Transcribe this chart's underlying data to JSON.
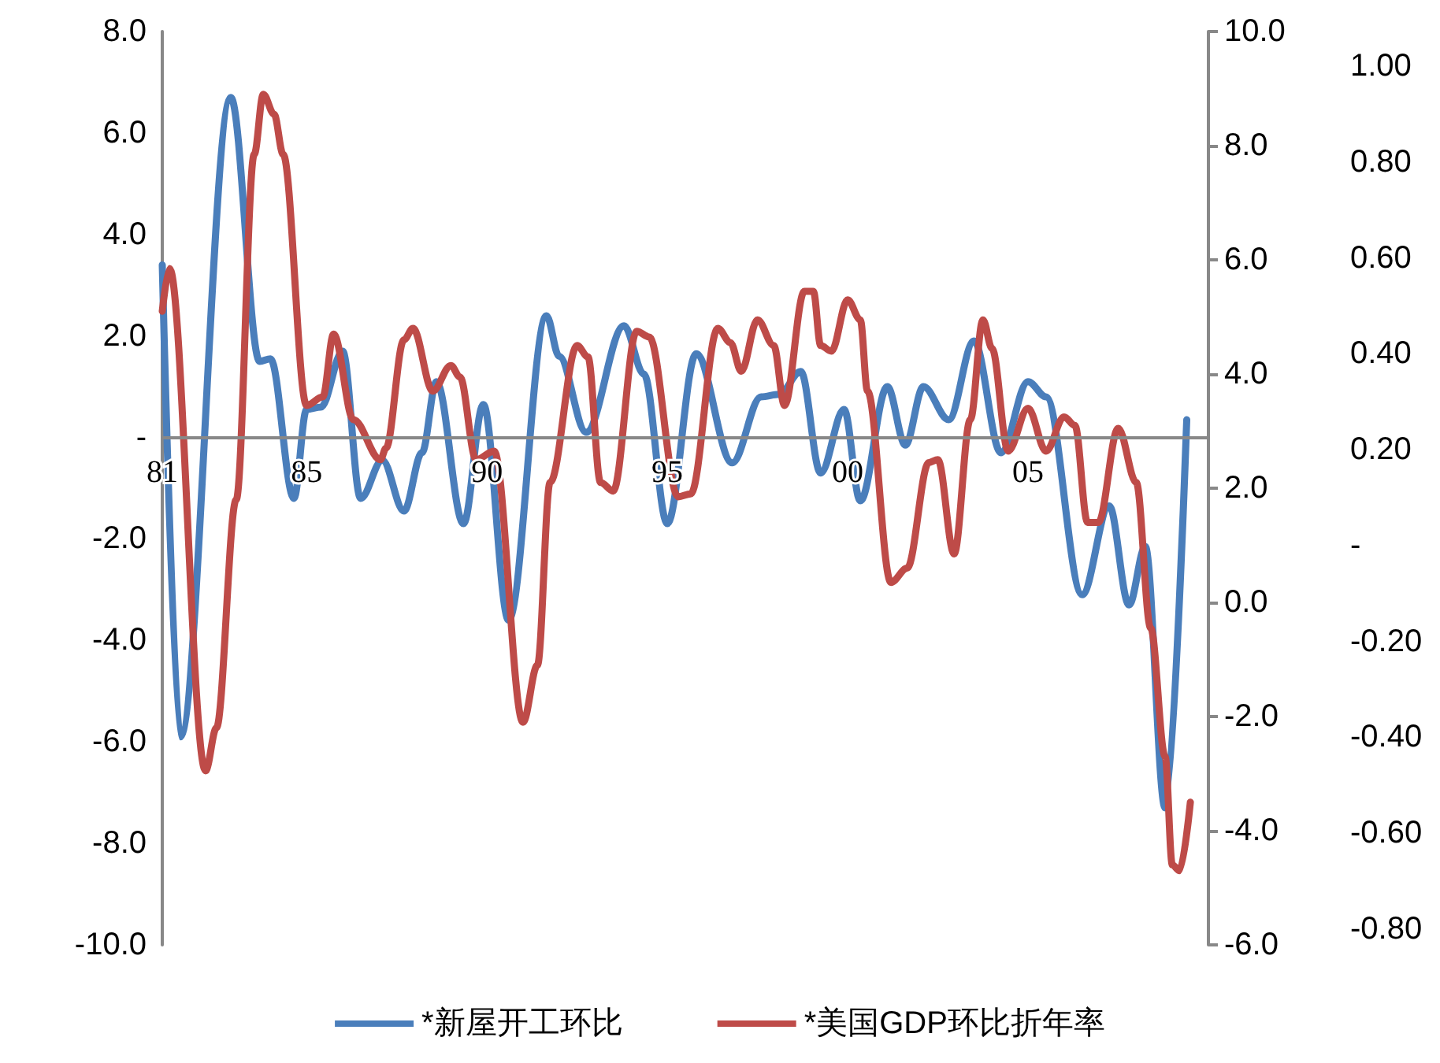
{
  "chart_data": {
    "type": "line",
    "legend": "bottom",
    "grid": false,
    "marker": "none",
    "line_style": "solid",
    "xlim": [
      1981,
      2010
    ],
    "xticks": [
      {
        "value": 1981,
        "label": "81"
      },
      {
        "value": 1985,
        "label": "85"
      },
      {
        "value": 1990,
        "label": "90"
      },
      {
        "value": 1995,
        "label": "95"
      },
      {
        "value": 2000,
        "label": "00"
      },
      {
        "value": 2005,
        "label": "05"
      }
    ],
    "ylim": [
      -10,
      8
    ],
    "yticks": [
      {
        "value": -10,
        "label": "-10.0"
      },
      {
        "value": -8,
        "label": "-8.0"
      },
      {
        "value": -6,
        "label": "-6.0"
      },
      {
        "value": -4,
        "label": "-4.0"
      },
      {
        "value": -2,
        "label": "-2.0"
      },
      {
        "value": 0,
        "label": "-"
      },
      {
        "value": 2,
        "label": "2.0"
      },
      {
        "value": 4,
        "label": "4.0"
      },
      {
        "value": 6,
        "label": "6.0"
      },
      {
        "value": 8,
        "label": "8.0"
      }
    ],
    "y2lim": [
      -6,
      10
    ],
    "y2ticks": [
      {
        "value": -6,
        "label": "-6.0"
      },
      {
        "value": -4,
        "label": "-4.0"
      },
      {
        "value": -2,
        "label": "-2.0"
      },
      {
        "value": 0,
        "label": "0.0"
      },
      {
        "value": 2,
        "label": "2.0"
      },
      {
        "value": 4,
        "label": "4.0"
      },
      {
        "value": 6,
        "label": "6.0"
      },
      {
        "value": 8,
        "label": "8.0"
      },
      {
        "value": 10,
        "label": "10.0"
      }
    ],
    "y3lim": [
      -0.8,
      1.0
    ],
    "y3ticks": [
      {
        "value": -0.8,
        "label": "-0.80"
      },
      {
        "value": -0.6,
        "label": "-0.60"
      },
      {
        "value": -0.4,
        "label": "-0.40"
      },
      {
        "value": -0.2,
        "label": "-0.20"
      },
      {
        "value": 0,
        "label": "-"
      },
      {
        "value": 0.2,
        "label": "0.20"
      },
      {
        "value": 0.4,
        "label": "0.40"
      },
      {
        "value": 0.6,
        "label": "0.60"
      },
      {
        "value": 0.8,
        "label": "0.80"
      },
      {
        "value": 1.0,
        "label": "1.00"
      }
    ],
    "series": [
      {
        "name": "*新屋开工环比",
        "color": "#4a7ebb",
        "x": [
          1981.0,
          1981.5,
          1982.9,
          1983.7,
          1984.0,
          1984.65,
          1985.0,
          1985.4,
          1986.0,
          1986.5,
          1987.1,
          1987.7,
          1988.2,
          1988.6,
          1989.35,
          1989.9,
          1990.6,
          1991.65,
          1992.0,
          1992.75,
          1993.8,
          1994.35,
          1995.0,
          1995.8,
          1996.8,
          1997.6,
          1998.1,
          1998.7,
          1999.25,
          1999.9,
          2000.35,
          2001.1,
          2001.6,
          2002.1,
          2002.8,
          2003.5,
          2004.25,
          2005.0,
          2005.5,
          2006.5,
          2007.25,
          2007.8,
          2008.25,
          2008.8,
          2009.4
        ],
        "values": [
          3.4,
          -5.9,
          6.7,
          1.5,
          1.55,
          -1.2,
          0.55,
          0.6,
          1.7,
          -1.2,
          -0.45,
          -1.45,
          -0.3,
          1.1,
          -1.7,
          0.65,
          -3.6,
          2.4,
          1.6,
          0.1,
          2.2,
          1.25,
          -1.7,
          1.65,
          -0.5,
          0.8,
          0.85,
          1.3,
          -0.7,
          0.55,
          -1.25,
          1.0,
          -0.15,
          1.0,
          0.35,
          1.9,
          -0.3,
          1.1,
          0.8,
          -3.1,
          -1.35,
          -3.3,
          -2.15,
          -7.3,
          0.35
        ]
      },
      {
        "name": "*美国GDP环比折年率",
        "color": "#be4b48",
        "axis": "y2",
        "x": [
          1981.0,
          1981.2,
          1982.2,
          1982.5,
          1983.05,
          1983.55,
          1983.8,
          1984.1,
          1984.35,
          1985.0,
          1985.45,
          1985.75,
          1986.3,
          1987.05,
          1987.2,
          1987.7,
          1987.95,
          1988.5,
          1989.0,
          1989.25,
          1989.7,
          1990.2,
          1991.0,
          1991.4,
          1991.75,
          1992.5,
          1992.8,
          1993.15,
          1993.5,
          1994.15,
          1994.5,
          1995.3,
          1995.65,
          1996.4,
          1996.75,
          1997.05,
          1997.5,
          1997.95,
          1998.25,
          1998.8,
          1999.05,
          1999.25,
          1999.55,
          2000.0,
          2000.35,
          2000.55,
          2001.2,
          2001.65,
          2002.25,
          2002.5,
          2002.95,
          2003.4,
          2003.75,
          2004.0,
          2004.45,
          2005.0,
          2005.5,
          2006.0,
          2006.3,
          2006.65,
          2006.95,
          2007.5,
          2008.0,
          2008.4,
          2008.8,
          2009.0,
          2009.2,
          2009.5
        ],
        "values": [
          5.1,
          5.85,
          -2.95,
          -2.2,
          1.8,
          7.85,
          8.9,
          8.55,
          7.85,
          3.45,
          3.6,
          4.7,
          3.2,
          2.5,
          2.7,
          4.6,
          4.8,
          3.7,
          4.15,
          3.95,
          2.5,
          2.65,
          -2.1,
          -1.1,
          2.1,
          4.5,
          4.3,
          2.1,
          1.95,
          4.75,
          4.65,
          1.85,
          1.9,
          4.8,
          4.55,
          4.05,
          4.95,
          4.5,
          3.45,
          5.45,
          5.45,
          4.5,
          4.4,
          5.3,
          4.95,
          3.7,
          0.35,
          0.6,
          2.45,
          2.5,
          0.85,
          3.2,
          4.95,
          4.45,
          2.65,
          3.4,
          2.65,
          3.25,
          3.1,
          1.4,
          1.4,
          3.05,
          2.1,
          -0.45,
          -2.7,
          -4.6,
          -4.7,
          -3.5
        ]
      }
    ]
  }
}
